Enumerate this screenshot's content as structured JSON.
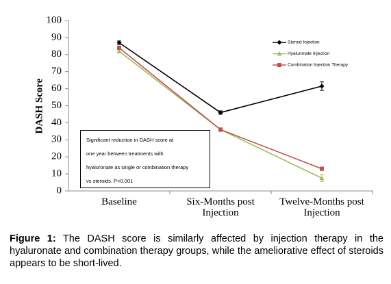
{
  "chart_data": {
    "type": "line",
    "y_label": "DASH Score",
    "categories": [
      "Baseline",
      "Six-Months post Injection",
      "Twelve-Months post Injection"
    ],
    "ylim": [
      0,
      100
    ],
    "yticks": [
      0,
      10,
      20,
      30,
      40,
      50,
      60,
      70,
      80,
      90,
      100
    ],
    "grid": false,
    "legend_position": "top-right",
    "series": [
      {
        "name": "Steroid Injection",
        "color": "#000000",
        "marker": "diamond",
        "values": [
          87,
          46,
          61.5
        ],
        "errors": [
          1,
          1,
          2.5
        ]
      },
      {
        "name": "Hyaluronate Injection",
        "color": "#9bbb59",
        "marker": "triangle",
        "values": [
          82,
          36,
          7.5
        ],
        "errors": [
          1,
          1,
          2
        ]
      },
      {
        "name": "Combination Injection Therapy",
        "color": "#c0504d",
        "marker": "square",
        "values": [
          84,
          36,
          13
        ],
        "errors": [
          1,
          1,
          1
        ]
      }
    ],
    "annotation": [
      "Significant reduction in DASH score at",
      "one year between treatments with",
      "hyaluronate as single or combination therapy",
      "vs steroids. P<0.001"
    ]
  },
  "caption": {
    "label": "Figure 1:",
    "text": "The DASH score is similarly affected by injection therapy in the hyaluronate and combination therapy groups, while the ameliorative effect of steroids appears to be short-lived."
  }
}
